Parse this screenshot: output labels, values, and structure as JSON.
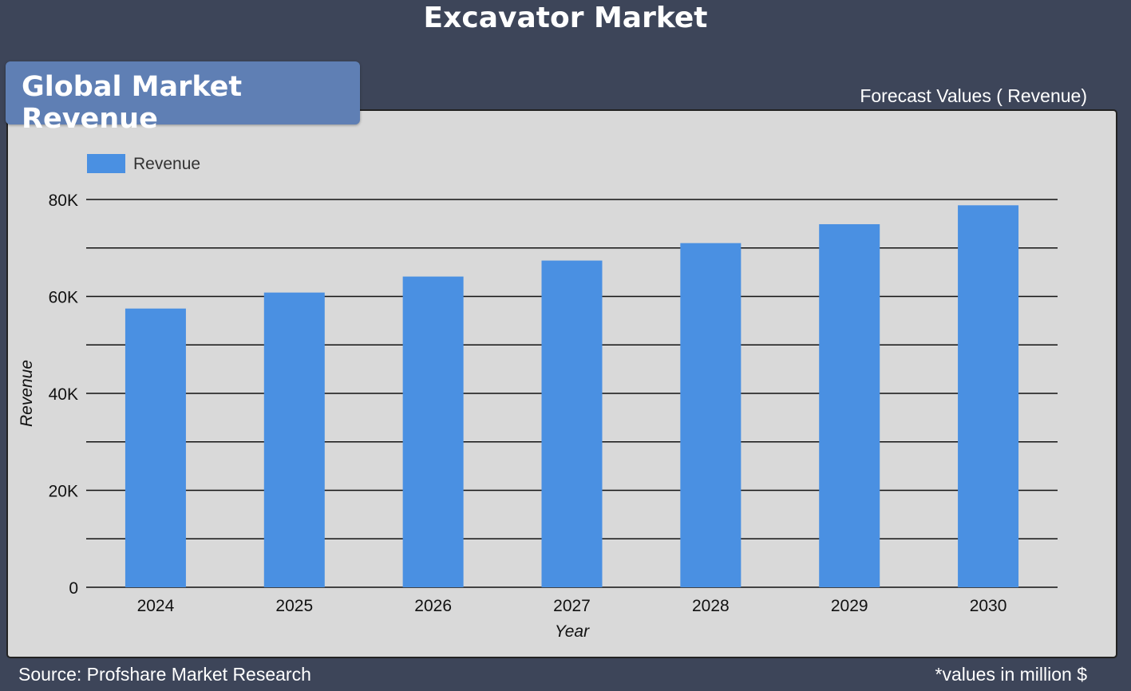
{
  "page": {
    "title": "Excavator Market",
    "badge": "Global Market Revenue",
    "forecast_label": "Forecast Values ( Revenue)",
    "source": "Source: Profshare Market Research",
    "units_note": "*values in million $"
  },
  "colors": {
    "background": "#3d4559",
    "badge": "#5f7fb4",
    "panel": "#d9d9d9",
    "bar": "#4a90e2"
  },
  "chart_data": {
    "type": "bar",
    "categories": [
      "2024",
      "2025",
      "2026",
      "2027",
      "2028",
      "2029",
      "2030"
    ],
    "series": [
      {
        "name": "Revenue",
        "values": [
          57500,
          60800,
          64100,
          67400,
          71000,
          74900,
          78800
        ]
      }
    ],
    "xlabel": "Year",
    "ylabel": "Revenue",
    "ylim": [
      0,
      80000
    ],
    "yticks": [
      "0",
      "20K",
      "40K",
      "60K",
      "80K"
    ],
    "grid": true,
    "legend": "top-left"
  }
}
